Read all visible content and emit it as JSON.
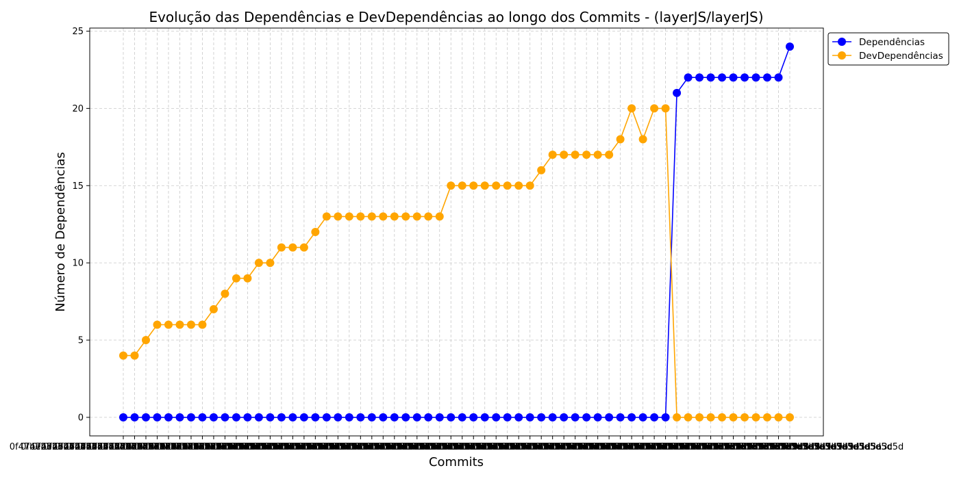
{
  "chart_data": {
    "type": "line",
    "title": "Evolução das Dependências e DevDependências ao longo dos Commits - (layerJS/layerJS)",
    "xlabel": "Commits",
    "ylabel": "Número de Dependências",
    "ylim": [
      -1.2,
      25.2
    ],
    "yticks": [
      0,
      5,
      10,
      15,
      20,
      25
    ],
    "grid": true,
    "legend_position": "top-right-outside",
    "x_tick_text": "0f47be2576d4bd8b3d3f7f9c5d8a1e7b9e1d5a3c5d",
    "series": [
      {
        "name": "Dependências",
        "color": "#0000ff",
        "values": [
          0,
          0,
          0,
          0,
          0,
          0,
          0,
          0,
          0,
          0,
          0,
          0,
          0,
          0,
          0,
          0,
          0,
          0,
          0,
          0,
          0,
          0,
          0,
          0,
          0,
          0,
          0,
          0,
          0,
          0,
          0,
          0,
          0,
          0,
          0,
          0,
          0,
          0,
          0,
          0,
          0,
          0,
          0,
          0,
          0,
          0,
          0,
          0,
          0,
          21,
          22,
          22,
          22,
          22,
          22,
          22,
          22,
          22,
          22,
          24
        ]
      },
      {
        "name": "DevDependências",
        "color": "#ffa500",
        "values": [
          4,
          4,
          5,
          6,
          6,
          6,
          6,
          6,
          7,
          8,
          9,
          9,
          10,
          10,
          11,
          11,
          11,
          12,
          13,
          13,
          13,
          13,
          13,
          13,
          13,
          13,
          13,
          13,
          13,
          15,
          15,
          15,
          15,
          15,
          15,
          15,
          15,
          16,
          17,
          17,
          17,
          17,
          17,
          17,
          18,
          20,
          18,
          20,
          20,
          0,
          0,
          0,
          0,
          0,
          0,
          0,
          0,
          0,
          0,
          0
        ]
      }
    ]
  }
}
